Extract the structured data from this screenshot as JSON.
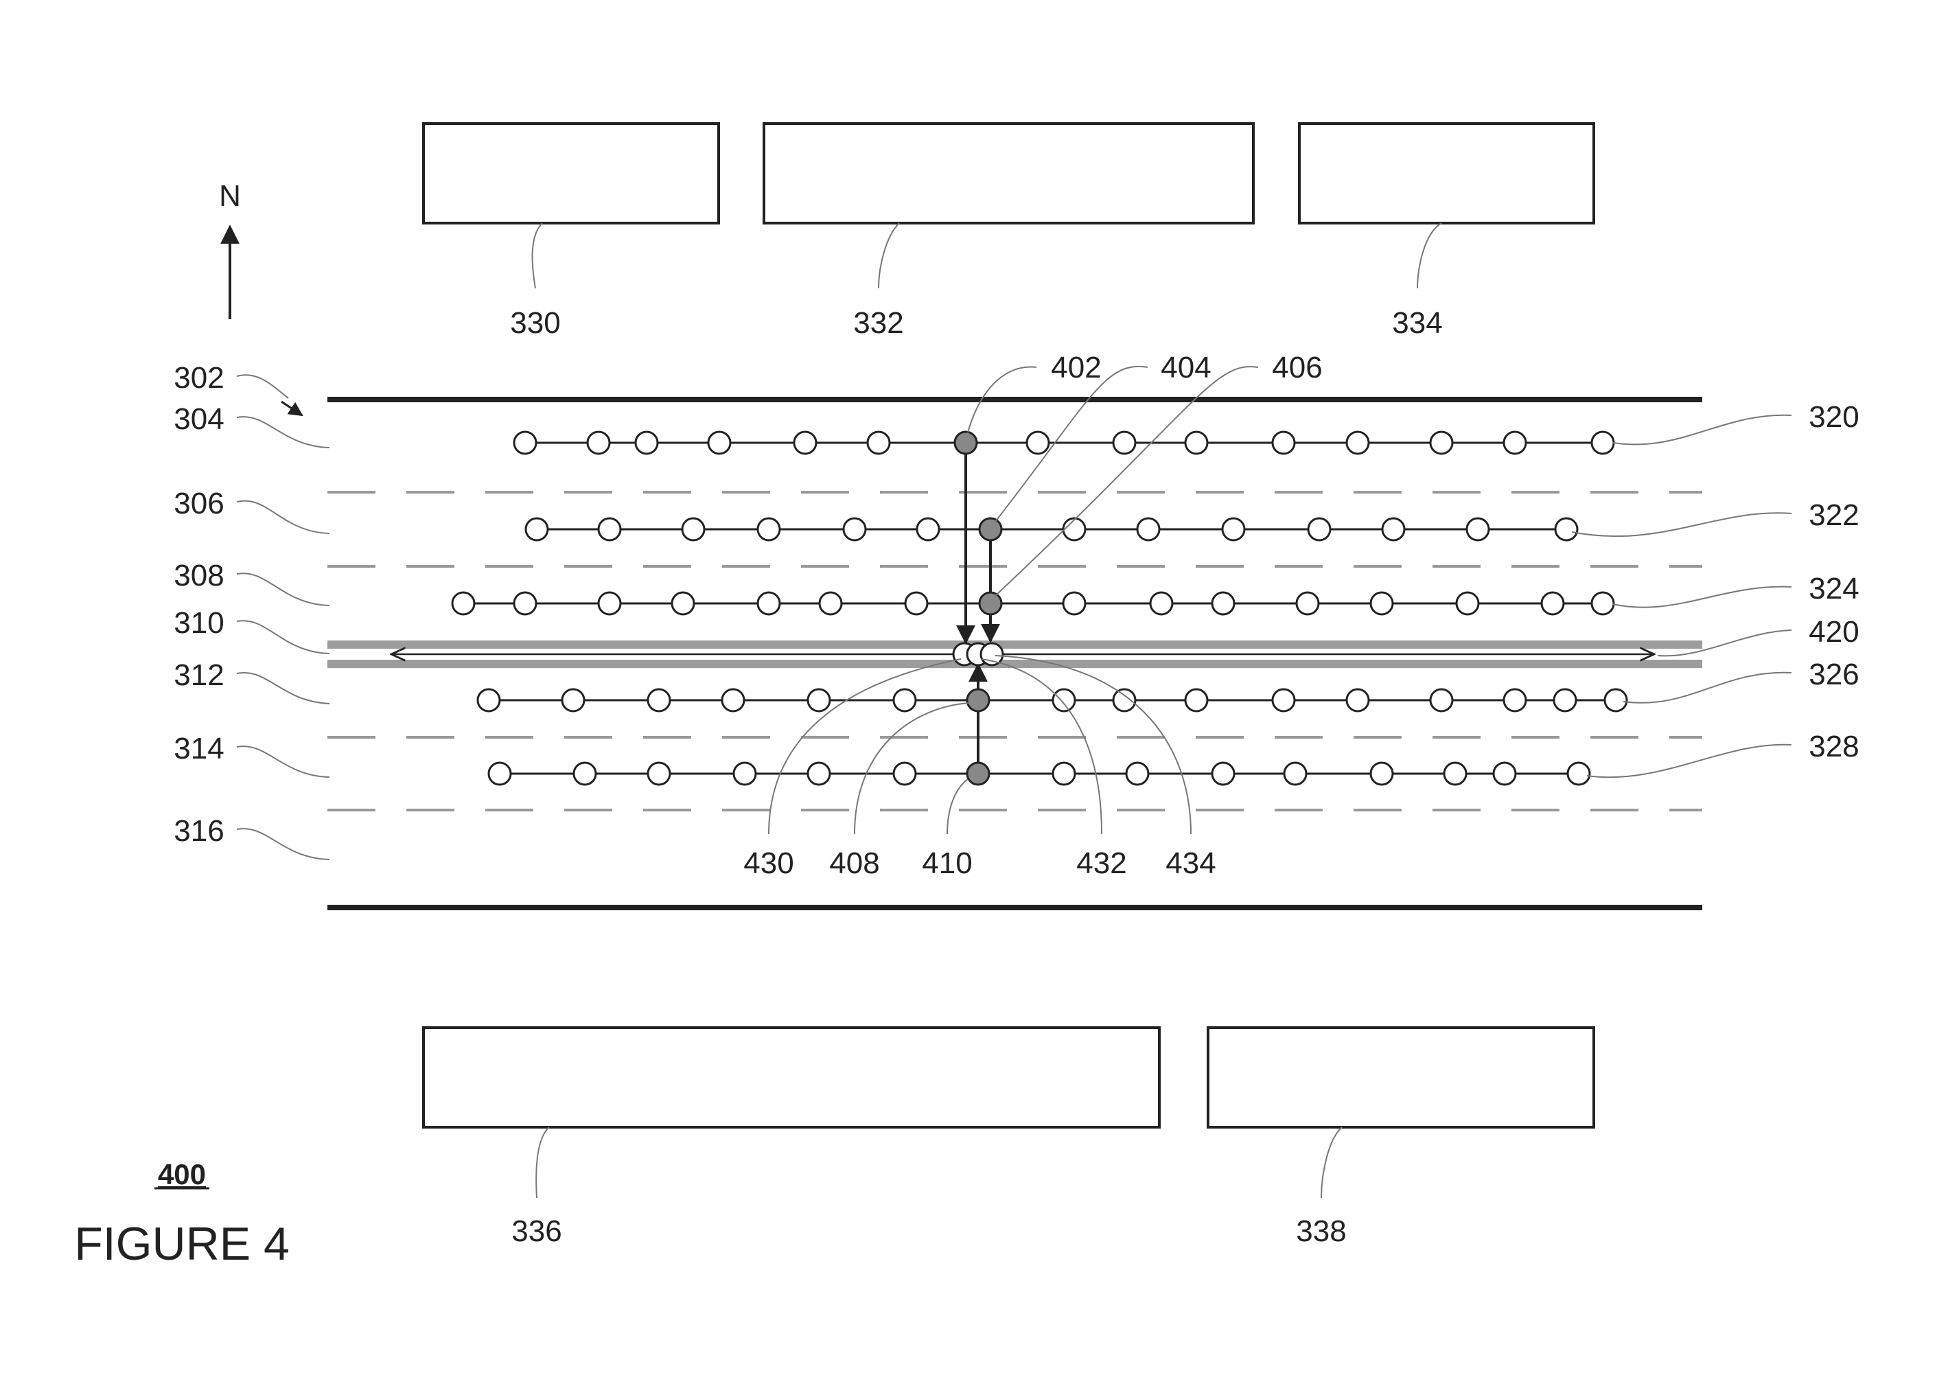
{
  "figure": {
    "number": "400",
    "caption": "FIGURE 4"
  },
  "compass": {
    "label": "N"
  },
  "top_boxes": [
    {
      "label": "330"
    },
    {
      "label": "332"
    },
    {
      "label": "334"
    }
  ],
  "bottom_boxes": [
    {
      "label": "336"
    },
    {
      "label": "338"
    }
  ],
  "left_labels": [
    "302",
    "304",
    "306",
    "308",
    "310",
    "312",
    "314",
    "316"
  ],
  "right_labels": [
    "320",
    "322",
    "324",
    "420",
    "326",
    "328"
  ],
  "top_refs": [
    "402",
    "404",
    "406"
  ],
  "bottom_refs": [
    "430",
    "408",
    "410",
    "432",
    "434"
  ],
  "colors": {
    "line": "#222222",
    "highlighted_node": "#888888",
    "center_line": "#9c9c9c",
    "dashed_divider": "#999999"
  }
}
